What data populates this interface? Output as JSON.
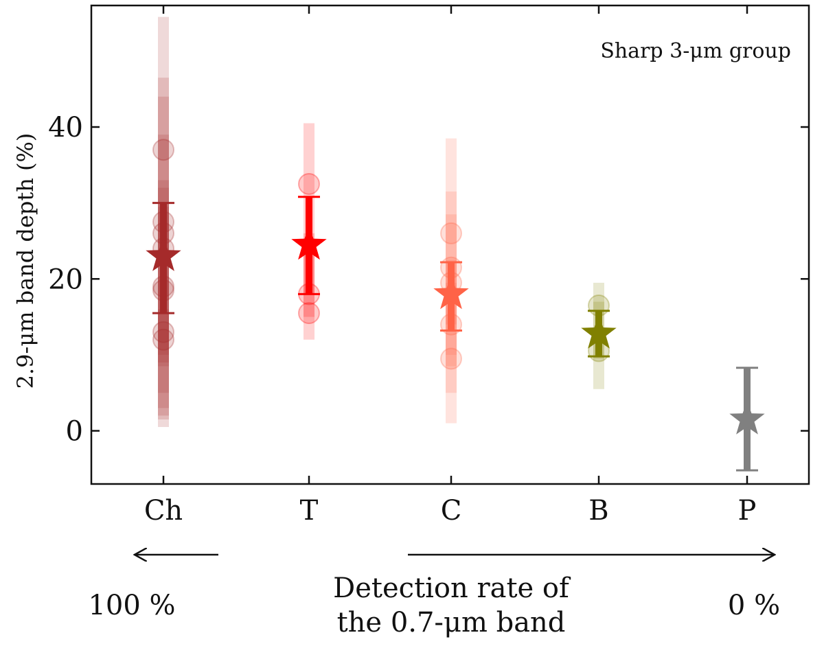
{
  "chart_data": {
    "type": "scatter",
    "title": "Sharp 3-μm group",
    "ylabel": "2.9-μm band depth (%)",
    "xlabel": "",
    "ylim": [
      -7,
      56
    ],
    "yticks": [
      0,
      20,
      40
    ],
    "grid": false,
    "categories": [
      "Ch",
      "T",
      "C",
      "B",
      "P"
    ],
    "colors": {
      "Ch": "#a52a2a",
      "T": "#ff0000",
      "C": "#ff6347",
      "B": "#808000",
      "P": "#808080"
    },
    "individual_points": [
      {
        "category": "Ch",
        "values": [
          37.0,
          27.5,
          26.0,
          24.0,
          19.0,
          18.5,
          13.0,
          12.0
        ],
        "err_low": [
          0.5,
          9.0,
          1.5,
          5.0,
          8.5,
          3.0,
          10.0,
          2.0
        ],
        "err_high": [
          54.5,
          46.5,
          39.0,
          44.0,
          29.5,
          32.0,
          16.0,
          33.0
        ]
      },
      {
        "category": "T",
        "values": [
          32.5,
          18.0,
          15.5
        ],
        "err_low": [
          18.0,
          12.0,
          15.0
        ],
        "err_high": [
          40.5,
          26.0,
          24.0
        ]
      },
      {
        "category": "C",
        "values": [
          26.0,
          21.5,
          19.5,
          14.0,
          9.5
        ],
        "err_low": [
          14.0,
          5.0,
          1.0,
          8.5,
          10.0
        ],
        "err_high": [
          38.5,
          28.5,
          31.5,
          22.5,
          19.5
        ]
      },
      {
        "category": "B",
        "values": [
          16.5,
          10.5
        ],
        "err_low": [
          5.5,
          9.5
        ],
        "err_high": [
          19.5,
          17.0
        ]
      }
    ],
    "means": [
      {
        "category": "Ch",
        "value": 23.0,
        "err_low": 15.5,
        "err_high": 30.0
      },
      {
        "category": "T",
        "value": 24.5,
        "err_low": 18.0,
        "err_high": 30.8
      },
      {
        "category": "C",
        "value": 18.0,
        "err_low": 13.2,
        "err_high": 22.2
      },
      {
        "category": "B",
        "value": 12.8,
        "err_low": 9.8,
        "err_high": 15.8
      },
      {
        "category": "P",
        "value": 1.5,
        "err_low": -5.2,
        "err_high": 8.3
      }
    ]
  },
  "annotation": {
    "left_percent": "100 %",
    "right_percent": "0 %",
    "label_line1": "Detection rate of",
    "label_line2": "the 0.7-μm band"
  }
}
